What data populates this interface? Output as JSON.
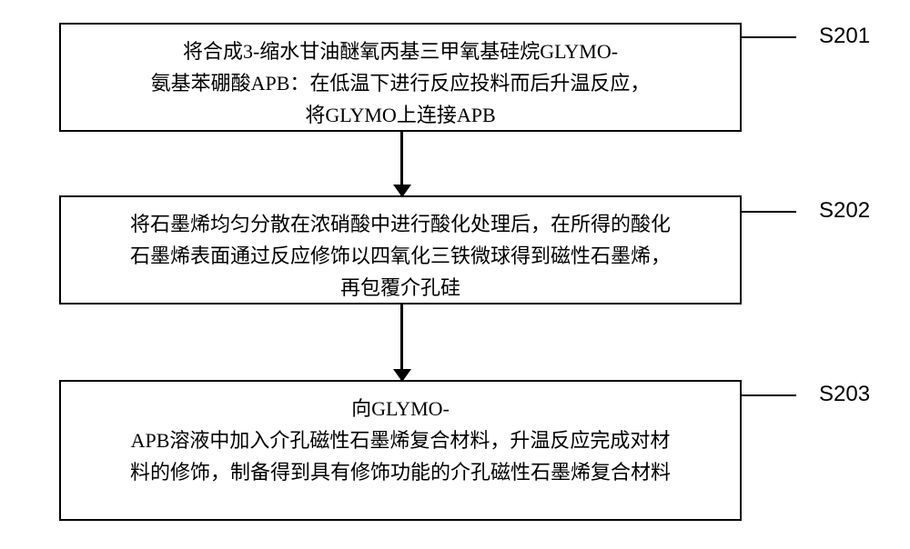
{
  "flowchart": {
    "box_border_color": "#000000",
    "box_border_width": 2,
    "background_color": "#ffffff",
    "font_family": "SimSun",
    "text_fontsize": 22,
    "label_fontsize": 24,
    "steps": [
      {
        "label": "S201",
        "lines": [
          "将合成3-缩水甘油醚氧丙基三甲氧基硅烷GLYMO-",
          "氨基苯硼酸APB：在低温下进行反应投料而后升温反应，",
          "将GLYMO上连接APB"
        ]
      },
      {
        "label": "S202",
        "lines": [
          "将石墨烯均匀分散在浓硝酸中进行酸化处理后，在所得的酸化",
          "石墨烯表面通过反应修饰以四氧化三铁微球得到磁性石墨烯，",
          "再包覆介孔硅"
        ]
      },
      {
        "label": "S203",
        "lines": [
          "向GLYMO-",
          "APB溶液中加入介孔磁性石墨烯复合材料，升温反应完成对材",
          "料的修饰，制备得到具有修饰功能的介孔磁性石墨烯复合材料"
        ]
      }
    ]
  }
}
